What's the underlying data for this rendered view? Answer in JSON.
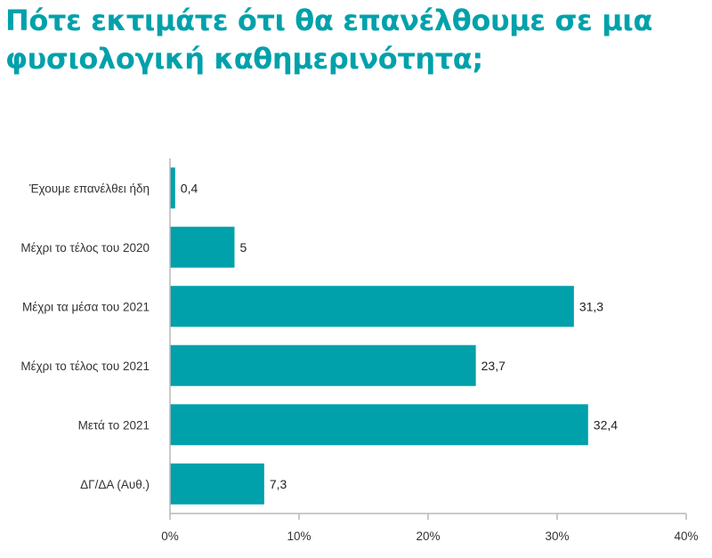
{
  "chart_data": {
    "type": "bar",
    "orientation": "horizontal",
    "title": "Πότε εκτιμάτε ότι θα επανέλθουμε σε μια φυσιολογική καθημερινότητα;",
    "categories": [
      "Έχουμε επανέλθει ήδη",
      "Μέχρι το τέλος του 2020",
      "Μέχρι τα μέσα του 2021",
      "Μέχρι το τέλος του 2021",
      "Μετά το 2021",
      "ΔΓ/ΔΑ (Αυθ.)"
    ],
    "values": [
      0.4,
      5,
      31.3,
      23.7,
      32.4,
      7.3
    ],
    "value_labels": [
      "0,4",
      "5",
      "31,3",
      "23,7",
      "32,4",
      "7,3"
    ],
    "xlim": [
      0,
      40
    ],
    "x_ticks": [
      0,
      10,
      20,
      30,
      40
    ],
    "x_tick_labels": [
      "0%",
      "10%",
      "20%",
      "30%",
      "40%"
    ],
    "xlabel": "",
    "ylabel": "",
    "grid": false,
    "bar_color": "#00a1ab"
  }
}
